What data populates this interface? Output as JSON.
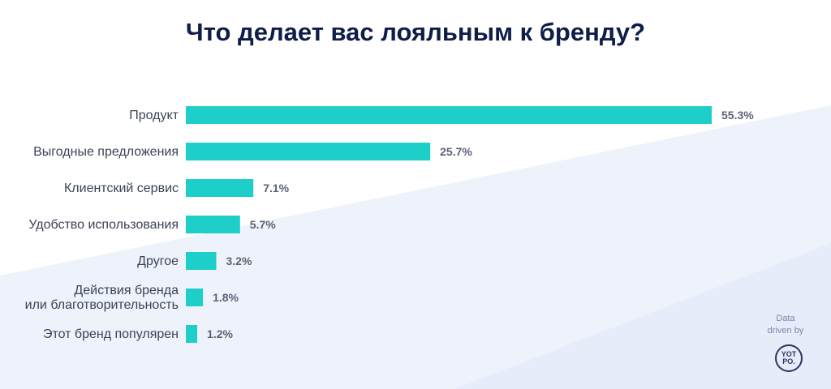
{
  "chart_data": {
    "type": "bar",
    "orientation": "horizontal",
    "title": "Что делает вас лояльным к бренду?",
    "categories": [
      "Продукт",
      "Выгодные предложения",
      "Клиентский сервис",
      "Удобство использования",
      "Другое",
      "Действия бренда\nили благотворительность",
      "Этот бренд популярен"
    ],
    "values": [
      55.3,
      25.7,
      7.1,
      5.7,
      3.2,
      1.8,
      1.2
    ],
    "value_labels": [
      "55.3%",
      "25.7%",
      "7.1%",
      "5.7%",
      "3.2%",
      "1.8%",
      "1.2%"
    ],
    "xlim": [
      0,
      55.3
    ],
    "grid": false,
    "bar_color": "#1dcfc8"
  },
  "branding": {
    "caption_line1": "Data",
    "caption_line2": "driven by",
    "logo_text": "YOT PO."
  },
  "colors": {
    "title": "#0f1d4a",
    "bar": "#1dcfc8",
    "background_accent": "#eef2fb"
  }
}
